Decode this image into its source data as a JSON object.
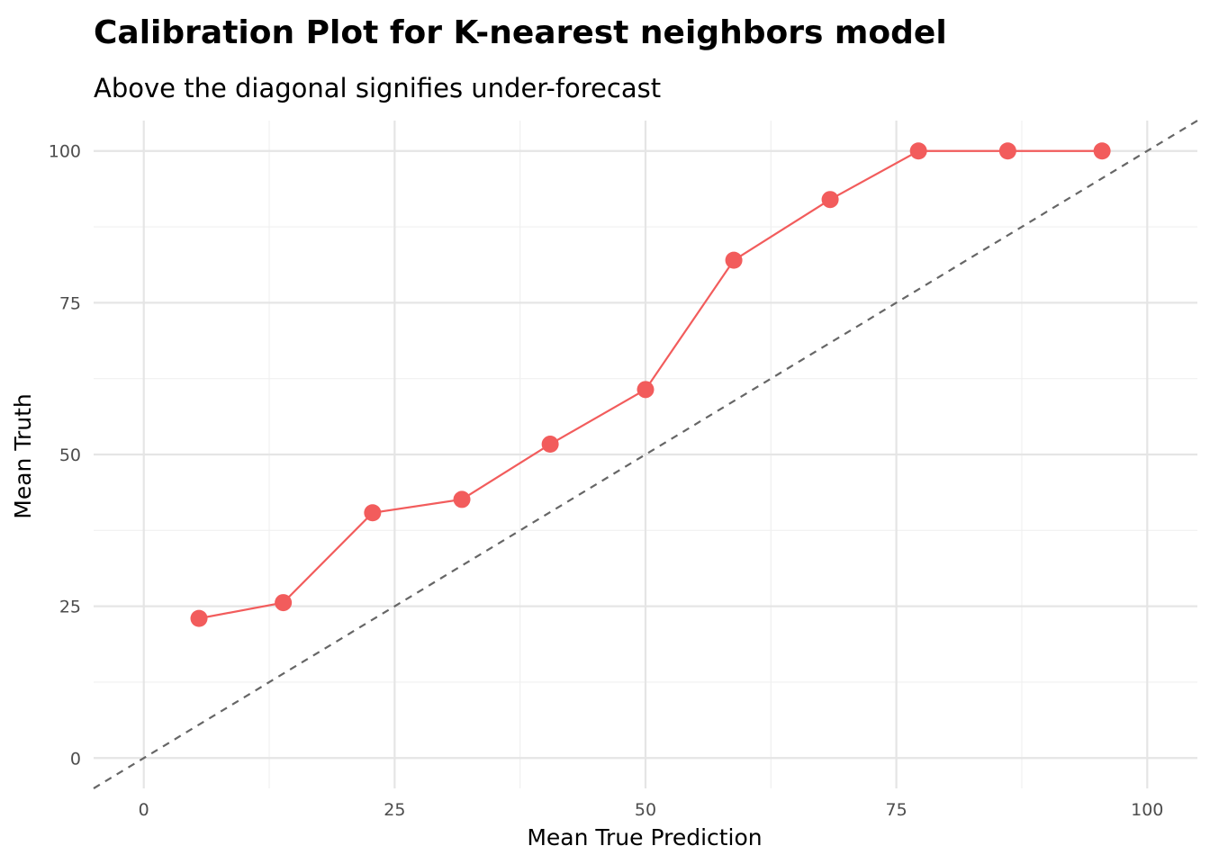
{
  "chart_data": {
    "type": "line",
    "title": "Calibration Plot for K-nearest neighbors model",
    "subtitle": "Above the diagonal signifies under-forecast",
    "xlabel": "Mean True Prediction",
    "ylabel": "Mean Truth",
    "xlim": [
      -5,
      105
    ],
    "ylim": [
      -5,
      105
    ],
    "x_ticks": [
      0,
      25,
      50,
      75,
      100
    ],
    "y_ticks": [
      0,
      25,
      50,
      75,
      100
    ],
    "x_tick_labels": [
      "0",
      "25",
      "50",
      "75",
      "100"
    ],
    "y_tick_labels": [
      "0",
      "25",
      "50",
      "75",
      "100"
    ],
    "grid": true,
    "legend": "none",
    "series": [
      {
        "color": "#f25c5c",
        "x": [
          5.5,
          13.9,
          22.8,
          31.7,
          40.5,
          50.0,
          58.8,
          68.4,
          77.2,
          86.1,
          95.5
        ],
        "y": [
          23.0,
          25.6,
          40.4,
          42.6,
          51.7,
          60.7,
          82.0,
          92.0,
          100.0,
          100.0,
          100.0
        ]
      }
    ],
    "reference_line": {
      "description": "diagonal y = x",
      "style": "dashed",
      "color": "#666666"
    }
  }
}
